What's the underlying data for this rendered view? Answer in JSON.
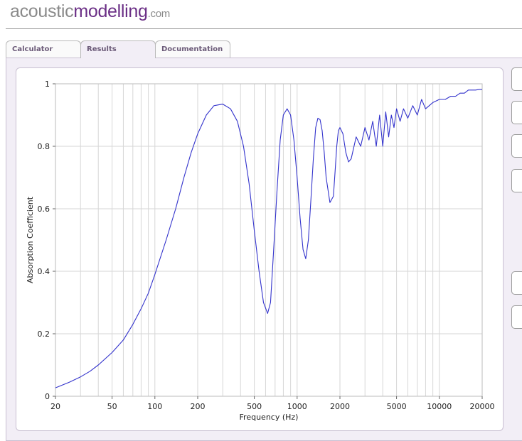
{
  "logo": {
    "part1": "acoustic",
    "part2": "modelling",
    "part3": ".com"
  },
  "tabs": [
    {
      "label": "Calculator"
    },
    {
      "label": "Results"
    },
    {
      "label": "Documentation"
    }
  ],
  "colors": {
    "line": "#3333cc",
    "grid": "#d6d6d6",
    "accent": "#6b2f86"
  },
  "chart_data": {
    "type": "line",
    "xlabel": "Frequency (Hz)",
    "ylabel": "Absorption Coefficient",
    "xscale": "log",
    "xlim": [
      20,
      20000
    ],
    "ylim": [
      0,
      1
    ],
    "xticks": [
      20,
      50,
      100,
      200,
      500,
      1000,
      2000,
      5000,
      10000,
      20000
    ],
    "xtick_labels": [
      "20",
      "50",
      "100",
      "200",
      "500",
      "1000",
      "2000",
      "5000",
      "10000",
      "20000"
    ],
    "yticks": [
      0,
      0.2,
      0.4,
      0.6,
      0.8,
      1
    ],
    "ytick_labels": [
      "0",
      "0.2",
      "0.4",
      "0.6",
      "0.8",
      "1"
    ],
    "grid": true,
    "series": [
      {
        "x": [
          20,
          25,
          30,
          35,
          40,
          50,
          60,
          70,
          80,
          90,
          100,
          120,
          140,
          160,
          180,
          200,
          230,
          260,
          300,
          340,
          380,
          420,
          460,
          500,
          540,
          580,
          620,
          650,
          680,
          720,
          760,
          800,
          850,
          900,
          950,
          1000,
          1050,
          1100,
          1150,
          1200,
          1250,
          1300,
          1350,
          1400,
          1450,
          1500,
          1550,
          1600,
          1700,
          1800,
          1850,
          1900,
          1950,
          2000,
          2100,
          2200,
          2300,
          2400,
          2600,
          2800,
          3000,
          3200,
          3400,
          3600,
          3800,
          4000,
          4200,
          4400,
          4600,
          4800,
          5000,
          5300,
          5600,
          6000,
          6500,
          7000,
          7500,
          8000,
          9000,
          10000,
          11000,
          12000,
          13000,
          14000,
          15000,
          16000,
          17000,
          18000,
          19000,
          20000
        ],
        "y": [
          0.027,
          0.045,
          0.062,
          0.08,
          0.1,
          0.14,
          0.18,
          0.23,
          0.28,
          0.33,
          0.39,
          0.5,
          0.6,
          0.7,
          0.78,
          0.84,
          0.9,
          0.93,
          0.935,
          0.92,
          0.88,
          0.8,
          0.68,
          0.53,
          0.4,
          0.3,
          0.265,
          0.3,
          0.45,
          0.65,
          0.82,
          0.9,
          0.92,
          0.9,
          0.82,
          0.7,
          0.57,
          0.47,
          0.44,
          0.5,
          0.63,
          0.76,
          0.86,
          0.89,
          0.885,
          0.85,
          0.78,
          0.7,
          0.62,
          0.64,
          0.72,
          0.8,
          0.85,
          0.86,
          0.84,
          0.78,
          0.75,
          0.76,
          0.83,
          0.8,
          0.86,
          0.82,
          0.88,
          0.8,
          0.9,
          0.8,
          0.91,
          0.83,
          0.9,
          0.86,
          0.92,
          0.88,
          0.92,
          0.89,
          0.93,
          0.9,
          0.95,
          0.92,
          0.94,
          0.95,
          0.95,
          0.96,
          0.96,
          0.97,
          0.97,
          0.98,
          0.98,
          0.98,
          0.982,
          0.982
        ]
      }
    ]
  }
}
